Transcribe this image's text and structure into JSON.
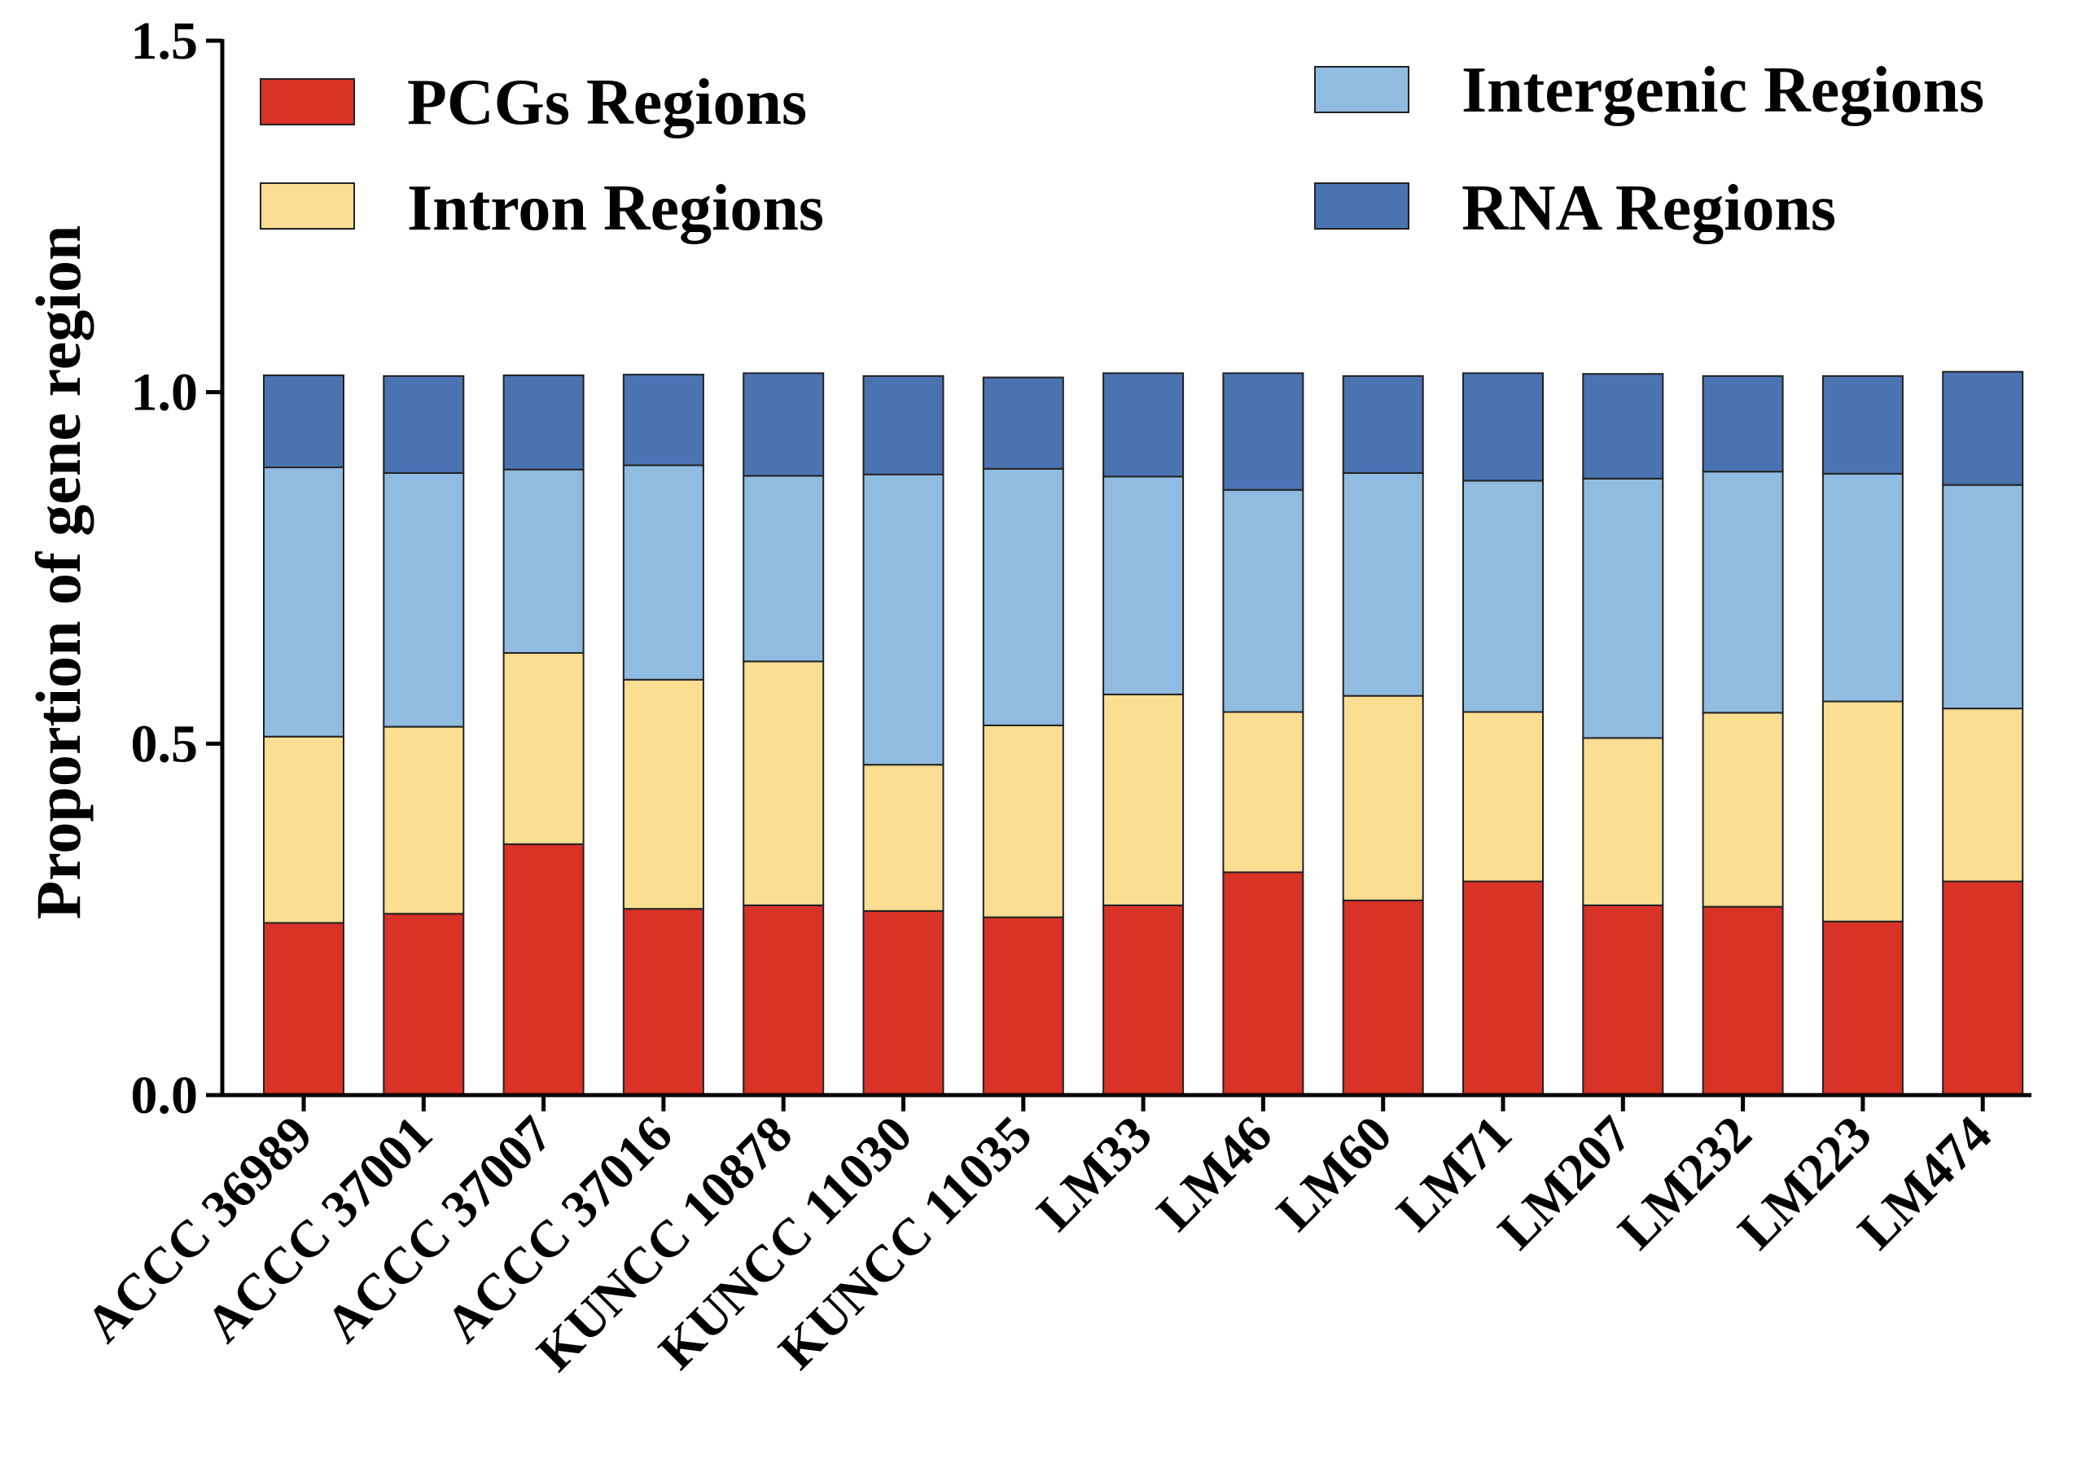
{
  "chart_data": {
    "type": "bar",
    "stacked": true,
    "title": "",
    "xlabel": "",
    "ylabel": "Proportion of gene region",
    "ylim": [
      0,
      1.5
    ],
    "yticks": [
      "0.0",
      "0.5",
      "1.0",
      "1.5"
    ],
    "ytick_values": [
      0,
      0.5,
      1.0,
      1.5
    ],
    "categories": [
      "ACCC 36989",
      "ACCC 37001",
      "ACCC 37007",
      "ACCC 37016",
      "KUNCC 10878",
      "KUNCC 11030",
      "KUNCC 11035",
      "LM33",
      "LM46",
      "LM60",
      "LM71",
      "LM207",
      "LM232",
      "LM223",
      "LM474"
    ],
    "series": [
      {
        "name": "PCGs Regions",
        "color": "#D93226",
        "values": [
          0.245,
          0.258,
          0.357,
          0.265,
          0.27,
          0.262,
          0.253,
          0.27,
          0.317,
          0.277,
          0.304,
          0.27,
          0.268,
          0.247,
          0.304
        ]
      },
      {
        "name": "Intron Regions",
        "color": "#FCDE93",
        "values": [
          0.265,
          0.266,
          0.272,
          0.326,
          0.347,
          0.208,
          0.273,
          0.3,
          0.228,
          0.291,
          0.241,
          0.238,
          0.276,
          0.313,
          0.246
        ]
      },
      {
        "name": "Intergenic Regions",
        "color": "#8FBCE0",
        "values": [
          0.383,
          0.361,
          0.261,
          0.305,
          0.264,
          0.413,
          0.365,
          0.31,
          0.316,
          0.317,
          0.329,
          0.369,
          0.343,
          0.324,
          0.318
        ]
      },
      {
        "name": "RNA Regions",
        "color": "#4A73B1",
        "values": [
          0.131,
          0.138,
          0.134,
          0.129,
          0.146,
          0.14,
          0.13,
          0.147,
          0.166,
          0.138,
          0.153,
          0.149,
          0.136,
          0.139,
          0.161
        ]
      }
    ],
    "legend": {
      "placement": "top",
      "entries": [
        "PCGs Regions",
        "Intron Regions",
        "Intergenic Regions",
        "RNA Regions"
      ]
    },
    "grid": false
  }
}
